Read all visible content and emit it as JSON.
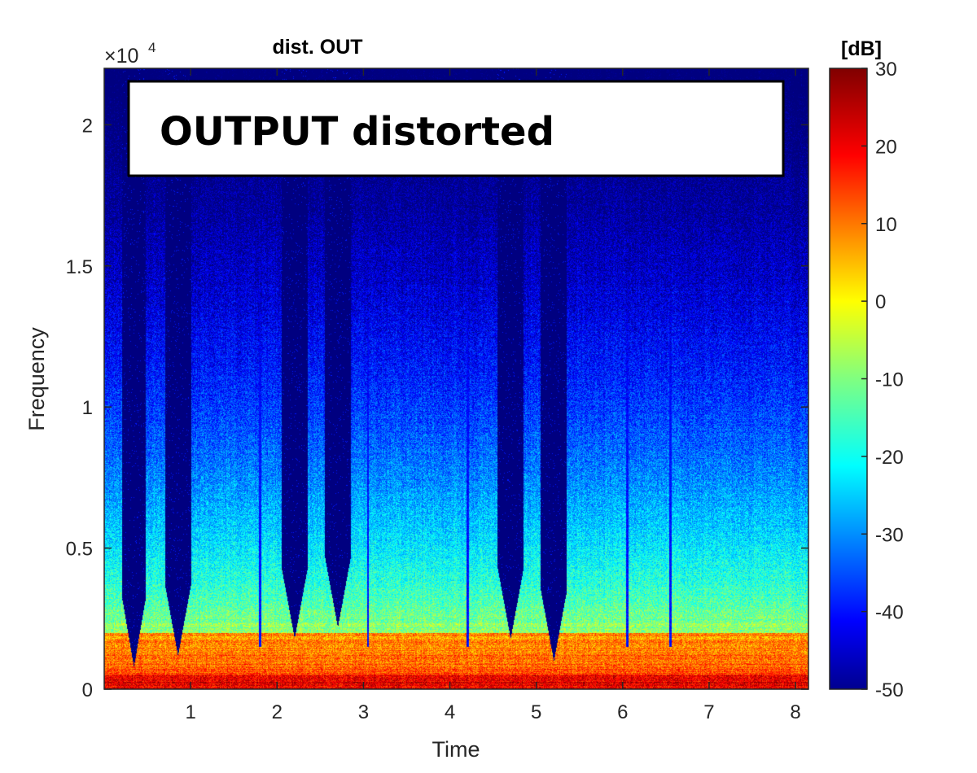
{
  "chart_data": {
    "type": "heatmap",
    "title": "dist. OUT",
    "xlabel": "Time",
    "ylabel": "Frequency",
    "x_ticks": [
      1,
      2,
      3,
      4,
      5,
      6,
      7,
      8
    ],
    "x_tick_labels": [
      "1",
      "2",
      "3",
      "4",
      "5",
      "6",
      "7",
      "8"
    ],
    "xlim": [
      0,
      8.15
    ],
    "y_ticks": [
      0,
      0.5,
      1,
      1.5,
      2
    ],
    "y_tick_labels": [
      "0",
      "0.5",
      "1",
      "1.5",
      "2"
    ],
    "ylim": [
      0,
      2.2
    ],
    "y_multiplier": {
      "base": "×10",
      "exponent": "4"
    },
    "colorbar": {
      "title": "[dB]",
      "range": [
        -50,
        30
      ],
      "ticks": [
        30,
        20,
        10,
        0,
        -10,
        -20,
        -30,
        -40,
        -50
      ],
      "tick_labels": [
        "30",
        "20",
        "10",
        "0",
        "-10",
        "-20",
        "-30",
        "-40",
        "-50"
      ],
      "colormap": "jet"
    },
    "annotation": "OUTPUT distorted",
    "silent_gaps": [
      {
        "start": 0.2,
        "end": 0.48,
        "min_freq": 0.08
      },
      {
        "start": 0.7,
        "end": 1.0,
        "min_freq": 0.12
      },
      {
        "start": 2.05,
        "end": 2.35,
        "min_freq": 0.18
      },
      {
        "start": 2.55,
        "end": 2.85,
        "min_freq": 0.22
      },
      {
        "start": 4.55,
        "end": 4.85,
        "min_freq": 0.18
      },
      {
        "start": 5.05,
        "end": 5.35,
        "min_freq": 0.1
      }
    ],
    "transient_lines": [
      1.8,
      3.05,
      4.2,
      6.05,
      6.55
    ],
    "grid": false
  }
}
